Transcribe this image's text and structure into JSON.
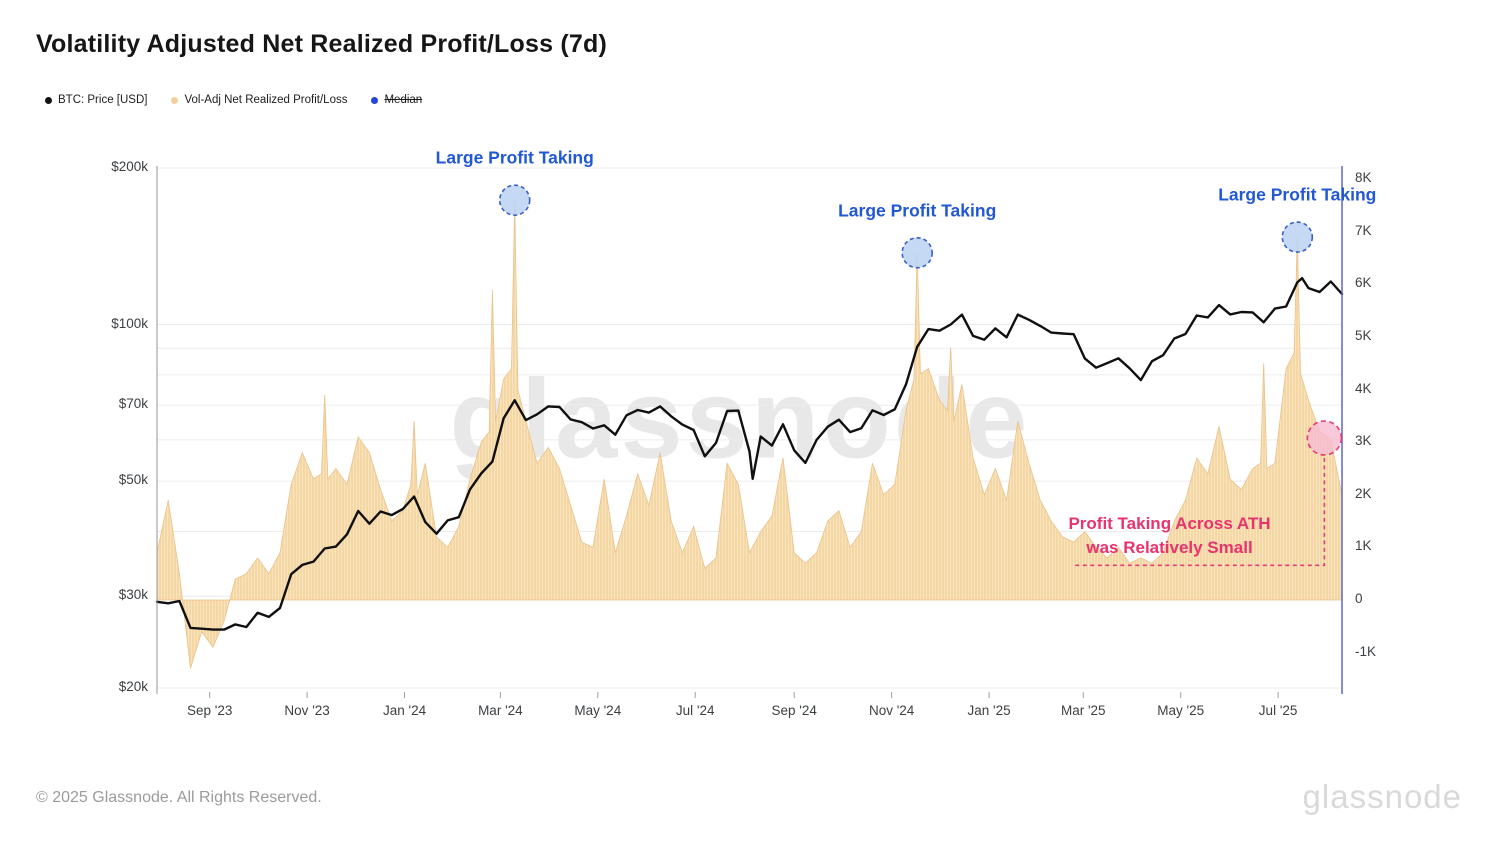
{
  "title": "Volatility Adjusted Net Realized Profit/Loss (7d)",
  "watermark": "glassnode",
  "footer": {
    "copyright": "© 2025 Glassnode. All Rights Reserved.",
    "logo": "glassnode"
  },
  "legend": {
    "items": [
      {
        "label": "BTC: Price [USD]",
        "color": "#111111",
        "strikethrough": false
      },
      {
        "label": "Vol-Adj Net Realized Profit/Loss",
        "color": "#f3cf9e",
        "strikethrough": false
      },
      {
        "label": "Median",
        "color": "#2644d8",
        "strikethrough": true
      }
    ]
  },
  "colors": {
    "btc_line": "#101010",
    "flow_fill": "#f5d7a4",
    "flow_fill_stripe": "#f9e4c2",
    "flow_edge": "#eac189",
    "grid": "#ececec",
    "left_axis_line": "#909498",
    "right_axis_line": "#5b68c0",
    "tick_mark": "#9e9e9e",
    "blue_annotation": "#2158d4",
    "blue_circle_fill": "rgba(187,210,242,0.85)",
    "blue_circle_border": "#3a5fc6",
    "pink_annotation": "#e8336e",
    "pink_circle_fill": "rgba(246,188,210,0.8)",
    "pink_circle_border": "#e23d77"
  },
  "chart_data": {
    "type": "mixed",
    "x_unit": "days since 2023-07-30",
    "x_range": [
      0,
      742
    ],
    "x_ticks": [
      {
        "label": "Sep '23",
        "t": 33
      },
      {
        "label": "Nov '23",
        "t": 94
      },
      {
        "label": "Jan '24",
        "t": 155
      },
      {
        "label": "Mar '24",
        "t": 215
      },
      {
        "label": "May '24",
        "t": 276
      },
      {
        "label": "Jul '24",
        "t": 337
      },
      {
        "label": "Sep '24",
        "t": 399
      },
      {
        "label": "Nov '24",
        "t": 460
      },
      {
        "label": "Jan '25",
        "t": 521
      },
      {
        "label": "Mar '25",
        "t": 580
      },
      {
        "label": "May '25",
        "t": 641
      },
      {
        "label": "Jul '25",
        "t": 702
      }
    ],
    "left_axis": {
      "scale": "log",
      "unit": "USD thousands",
      "ticks": [
        {
          "label": "$200k",
          "v": 200
        },
        {
          "label": "$100k",
          "v": 100
        },
        {
          "label": "$70k",
          "v": 70
        },
        {
          "label": "$50k",
          "v": 50
        },
        {
          "label": "$30k",
          "v": 30
        },
        {
          "label": "$20k",
          "v": 20
        }
      ],
      "gridline_values": [
        200,
        100,
        90,
        80,
        70,
        60,
        50,
        40,
        30,
        20
      ]
    },
    "right_axis": {
      "scale": "linear",
      "unit": "K",
      "ticks": [
        {
          "label": "8K",
          "v": 8
        },
        {
          "label": "7K",
          "v": 7
        },
        {
          "label": "6K",
          "v": 6
        },
        {
          "label": "5K",
          "v": 5
        },
        {
          "label": "4K",
          "v": 4
        },
        {
          "label": "3K",
          "v": 3
        },
        {
          "label": "2K",
          "v": 2
        },
        {
          "label": "1K",
          "v": 1
        },
        {
          "label": "0",
          "v": 0
        },
        {
          "label": "-1K",
          "v": -1
        }
      ]
    },
    "series": [
      {
        "name": "BTC: Price [USD]",
        "type": "line",
        "axis": "left",
        "points": [
          [
            0,
            29.3
          ],
          [
            7,
            29.1
          ],
          [
            14,
            29.4
          ],
          [
            21,
            26.1
          ],
          [
            28,
            26.0
          ],
          [
            35,
            25.9
          ],
          [
            42,
            25.9
          ],
          [
            49,
            26.5
          ],
          [
            56,
            26.2
          ],
          [
            63,
            27.9
          ],
          [
            70,
            27.4
          ],
          [
            77,
            28.5
          ],
          [
            84,
            33.1
          ],
          [
            91,
            34.5
          ],
          [
            98,
            35.0
          ],
          [
            105,
            37.1
          ],
          [
            112,
            37.4
          ],
          [
            119,
            39.5
          ],
          [
            126,
            43.8
          ],
          [
            133,
            41.4
          ],
          [
            140,
            43.7
          ],
          [
            147,
            43.0
          ],
          [
            154,
            44.2
          ],
          [
            161,
            46.7
          ],
          [
            168,
            41.7
          ],
          [
            175,
            39.6
          ],
          [
            182,
            42.0
          ],
          [
            189,
            42.6
          ],
          [
            196,
            48.2
          ],
          [
            203,
            51.7
          ],
          [
            210,
            54.5
          ],
          [
            217,
            66.0
          ],
          [
            224,
            71.5
          ],
          [
            231,
            65.5
          ],
          [
            238,
            67.2
          ],
          [
            245,
            69.6
          ],
          [
            252,
            69.4
          ],
          [
            259,
            65.7
          ],
          [
            266,
            64.9
          ],
          [
            273,
            63.1
          ],
          [
            280,
            64.0
          ],
          [
            287,
            61.4
          ],
          [
            294,
            66.9
          ],
          [
            301,
            68.5
          ],
          [
            308,
            67.7
          ],
          [
            315,
            69.6
          ],
          [
            322,
            66.6
          ],
          [
            329,
            64.2
          ],
          [
            336,
            62.7
          ],
          [
            343,
            55.8
          ],
          [
            350,
            59.2
          ],
          [
            357,
            68.2
          ],
          [
            364,
            68.3
          ],
          [
            371,
            57.0
          ],
          [
            373,
            50.5
          ],
          [
            378,
            60.9
          ],
          [
            385,
            58.5
          ],
          [
            392,
            64.3
          ],
          [
            399,
            57.3
          ],
          [
            406,
            54.2
          ],
          [
            413,
            60.0
          ],
          [
            420,
            63.6
          ],
          [
            427,
            65.6
          ],
          [
            434,
            62.1
          ],
          [
            441,
            63.2
          ],
          [
            448,
            68.4
          ],
          [
            455,
            67.0
          ],
          [
            462,
            68.7
          ],
          [
            469,
            76.7
          ],
          [
            476,
            90.6
          ],
          [
            483,
            98.0
          ],
          [
            490,
            97.3
          ],
          [
            497,
            100.0
          ],
          [
            504,
            104.5
          ],
          [
            511,
            95.1
          ],
          [
            518,
            93.5
          ],
          [
            525,
            98.3
          ],
          [
            532,
            94.5
          ],
          [
            539,
            104.5
          ],
          [
            546,
            102.1
          ],
          [
            553,
            99.4
          ],
          [
            560,
            96.5
          ],
          [
            567,
            96.1
          ],
          [
            574,
            95.8
          ],
          [
            581,
            86.0
          ],
          [
            588,
            82.6
          ],
          [
            595,
            84.3
          ],
          [
            602,
            86.1
          ],
          [
            609,
            82.4
          ],
          [
            616,
            78.2
          ],
          [
            623,
            85.0
          ],
          [
            630,
            87.3
          ],
          [
            637,
            94.0
          ],
          [
            644,
            95.9
          ],
          [
            651,
            104.1
          ],
          [
            658,
            103.2
          ],
          [
            665,
            109.0
          ],
          [
            672,
            104.6
          ],
          [
            679,
            105.7
          ],
          [
            686,
            105.5
          ],
          [
            693,
            101.0
          ],
          [
            700,
            107.3
          ],
          [
            707,
            108.3
          ],
          [
            714,
            120.5
          ],
          [
            717,
            122.8
          ],
          [
            721,
            117.5
          ],
          [
            728,
            115.5
          ],
          [
            735,
            121.0
          ],
          [
            742,
            114.5
          ]
        ]
      },
      {
        "name": "Vol-Adj Net Realized Profit/Loss",
        "type": "area",
        "axis": "right",
        "points": [
          [
            0,
            0.9
          ],
          [
            7,
            1.9
          ],
          [
            14,
            0.5
          ],
          [
            21,
            -1.3
          ],
          [
            28,
            -0.6
          ],
          [
            35,
            -0.9
          ],
          [
            42,
            -0.4
          ],
          [
            49,
            0.4
          ],
          [
            56,
            0.5
          ],
          [
            63,
            0.8
          ],
          [
            70,
            0.5
          ],
          [
            77,
            0.9
          ],
          [
            84,
            2.2
          ],
          [
            91,
            2.8
          ],
          [
            98,
            2.3
          ],
          [
            103,
            2.4
          ],
          [
            105,
            3.9
          ],
          [
            107,
            2.3
          ],
          [
            112,
            2.5
          ],
          [
            119,
            2.2
          ],
          [
            126,
            3.1
          ],
          [
            133,
            2.8
          ],
          [
            140,
            2.1
          ],
          [
            147,
            1.5
          ],
          [
            154,
            1.7
          ],
          [
            159,
            2.2
          ],
          [
            161,
            3.4
          ],
          [
            163,
            2.0
          ],
          [
            168,
            2.6
          ],
          [
            175,
            1.2
          ],
          [
            182,
            1.0
          ],
          [
            189,
            1.4
          ],
          [
            196,
            2.3
          ],
          [
            203,
            3.0
          ],
          [
            208,
            3.2
          ],
          [
            210,
            5.9
          ],
          [
            212,
            3.4
          ],
          [
            217,
            4.2
          ],
          [
            222,
            4.4
          ],
          [
            224,
            7.55
          ],
          [
            226,
            4.0
          ],
          [
            231,
            3.4
          ],
          [
            238,
            2.6
          ],
          [
            245,
            2.9
          ],
          [
            252,
            2.5
          ],
          [
            259,
            1.8
          ],
          [
            266,
            1.1
          ],
          [
            273,
            1.0
          ],
          [
            280,
            2.3
          ],
          [
            287,
            0.9
          ],
          [
            294,
            1.6
          ],
          [
            301,
            2.4
          ],
          [
            308,
            1.8
          ],
          [
            315,
            2.8
          ],
          [
            322,
            1.5
          ],
          [
            329,
            0.9
          ],
          [
            336,
            1.4
          ],
          [
            343,
            0.6
          ],
          [
            350,
            0.8
          ],
          [
            357,
            2.6
          ],
          [
            364,
            2.2
          ],
          [
            371,
            0.9
          ],
          [
            378,
            1.3
          ],
          [
            385,
            1.6
          ],
          [
            392,
            2.7
          ],
          [
            399,
            0.9
          ],
          [
            406,
            0.7
          ],
          [
            413,
            0.9
          ],
          [
            420,
            1.5
          ],
          [
            427,
            1.7
          ],
          [
            434,
            1.0
          ],
          [
            441,
            1.3
          ],
          [
            448,
            2.6
          ],
          [
            455,
            2.0
          ],
          [
            462,
            2.2
          ],
          [
            469,
            3.6
          ],
          [
            474,
            4.2
          ],
          [
            476,
            6.6
          ],
          [
            478,
            4.3
          ],
          [
            483,
            4.4
          ],
          [
            490,
            3.8
          ],
          [
            495,
            3.6
          ],
          [
            497,
            4.8
          ],
          [
            499,
            3.4
          ],
          [
            504,
            4.1
          ],
          [
            511,
            2.7
          ],
          [
            518,
            2.0
          ],
          [
            525,
            2.5
          ],
          [
            532,
            1.9
          ],
          [
            539,
            3.4
          ],
          [
            546,
            2.6
          ],
          [
            553,
            1.9
          ],
          [
            560,
            1.5
          ],
          [
            567,
            1.2
          ],
          [
            574,
            1.1
          ],
          [
            581,
            1.3
          ],
          [
            588,
            1.0
          ],
          [
            595,
            0.8
          ],
          [
            602,
            1.0
          ],
          [
            609,
            0.7
          ],
          [
            616,
            0.8
          ],
          [
            623,
            0.7
          ],
          [
            630,
            0.9
          ],
          [
            637,
            1.5
          ],
          [
            644,
            1.9
          ],
          [
            651,
            2.7
          ],
          [
            658,
            2.4
          ],
          [
            665,
            3.3
          ],
          [
            672,
            2.3
          ],
          [
            679,
            2.1
          ],
          [
            686,
            2.5
          ],
          [
            691,
            2.6
          ],
          [
            693,
            4.5
          ],
          [
            695,
            2.5
          ],
          [
            700,
            2.6
          ],
          [
            707,
            4.4
          ],
          [
            712,
            4.7
          ],
          [
            714,
            6.9
          ],
          [
            716,
            4.3
          ],
          [
            721,
            3.8
          ],
          [
            728,
            3.2
          ],
          [
            731,
            3.15
          ],
          [
            735,
            3.05
          ],
          [
            742,
            2.0
          ]
        ]
      }
    ],
    "annotations": {
      "large_profit": [
        {
          "label": "Large Profit Taking",
          "t": 224,
          "v": 7.6
        },
        {
          "label": "Large Profit Taking",
          "t": 476,
          "v": 6.6
        },
        {
          "label": "Large Profit Taking",
          "t": 714,
          "v": 6.9
        }
      ],
      "ath_note": {
        "line1": "Profit Taking Across ATH",
        "line2": "was Relatively Small",
        "circle": {
          "t": 731,
          "v": 3.08
        },
        "connector": {
          "t_from": 575,
          "t_to": 731,
          "v": 0.66
        },
        "text_anchor": {
          "t": 634,
          "v": 1.44
        }
      }
    }
  }
}
